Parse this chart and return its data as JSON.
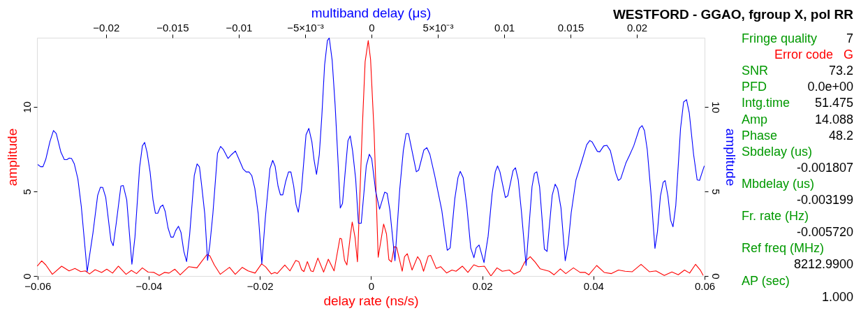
{
  "chart_data": {
    "type": "line",
    "title": "WESTFORD - GGAO, fgroup X, pol RR",
    "xlabel": "delay rate (ns/s)",
    "x2label": "multiband delay (μs)",
    "ylabel": "amplitude",
    "y2label": "amplitude",
    "xlim": [
      -0.0601,
      0.06
    ],
    "xticks": [
      -0.06,
      -0.04,
      -0.02,
      0,
      0.02,
      0.04,
      0.06
    ],
    "x2lim": [
      -0.0252,
      0.0251
    ],
    "x2ticks": [
      -0.02,
      -0.015,
      -0.01,
      {
        "value": -0.005,
        "label": "−5×10⁻³"
      },
      0,
      {
        "value": 0.005,
        "label": "5×10⁻³"
      },
      0.01,
      0.015,
      0.02
    ],
    "ylim": [
      0,
      14.09
    ],
    "yticks": [
      0,
      5,
      10
    ],
    "y2lim": [
      0,
      14.09
    ],
    "y2ticks": [
      0,
      5,
      10
    ],
    "grid": false,
    "marker": "none",
    "line_style": "solid",
    "series": [
      {
        "color": "#ff0000",
        "x": [
          -0.06006,
          -0.05926,
          -0.05851,
          -0.05734,
          -0.05567,
          -0.05433,
          -0.05328,
          -0.05223,
          -0.0514,
          -0.05065,
          -0.04965,
          -0.04847,
          -0.04755,
          -0.04651,
          -0.04546,
          -0.04408,
          -0.04312,
          -0.0422,
          -0.04115,
          -0.04011,
          -0.03906,
          -0.0381,
          -0.03718,
          -0.03634,
          -0.0353,
          -0.03434,
          -0.03279,
          -0.03133,
          -0.03049,
          -0.02952,
          -0.02902,
          -0.0282,
          -0.02714,
          -0.02547,
          -0.02443,
          -0.02317,
          -0.02212,
          -0.02087,
          -0.0197,
          -0.01898,
          -0.01794,
          -0.01731,
          -0.0169,
          -0.01552,
          -0.01459,
          -0.01355,
          -0.01301,
          -0.0125,
          -0.01208,
          -0.01146,
          -0.01083,
          -0.01041,
          -0.00957,
          -0.00853,
          -0.00769,
          -0.00665,
          -0.00561,
          -0.00531,
          -0.00477,
          -0.00435,
          -0.00373,
          -0.00339,
          -0.00289,
          -0.00245,
          -0.00158,
          -0.00107,
          -0.00051,
          -9e-05,
          0.00055,
          0.00128,
          0.00226,
          0.00277,
          0.0032,
          0.00366,
          0.00418,
          0.0046,
          0.0056,
          0.00602,
          0.00652,
          0.00738,
          0.00837,
          0.00887,
          0.00944,
          0.01029,
          0.01072,
          0.01173,
          0.01251,
          0.01358,
          0.01455,
          0.01528,
          0.01642,
          0.01742,
          0.01848,
          0.01934,
          0.0204,
          0.02156,
          0.02266,
          0.0236,
          0.02488,
          0.02573,
          0.0268,
          0.02765,
          0.02863,
          0.02949,
          0.03043,
          0.03205,
          0.0329,
          0.03405,
          0.03503,
          0.0364,
          0.0376,
          0.03853,
          0.03917,
          0.04059,
          0.04194,
          0.04324,
          0.04452,
          0.04571,
          0.04699,
          0.04857,
          0.05006,
          0.05126,
          0.05275,
          0.05412,
          0.05527,
          0.05639,
          0.05731,
          0.05838,
          0.05923,
          0.05975
        ],
        "values": [
          0.58,
          0.89,
          0.65,
          0.1,
          0.58,
          0.3,
          0.44,
          0.26,
          0.3,
          0.12,
          0.37,
          0.21,
          0.4,
          0.17,
          0.58,
          0.1,
          0.33,
          0.14,
          0.48,
          0.23,
          0.21,
          0.03,
          0.21,
          0.17,
          0.4,
          0.07,
          0.55,
          0.48,
          0.85,
          1.27,
          1.2,
          0.65,
          0.1,
          0.51,
          0.1,
          0.51,
          0.3,
          0.17,
          0.72,
          0.54,
          0.12,
          0.21,
          0.14,
          0.65,
          0.3,
          0.92,
          0.85,
          0.37,
          0.26,
          0.85,
          0.3,
          0.26,
          1.06,
          0.23,
          0.99,
          0.3,
          2.23,
          2.19,
          0.92,
          0.65,
          2.37,
          3.19,
          2.3,
          0.84,
          8.73,
          12.67,
          13.92,
          12.81,
          8.45,
          1.11,
          3.07,
          2.49,
          0.97,
          0.83,
          1.73,
          1.69,
          0.28,
          1.14,
          1.32,
          0.35,
          1.14,
          0.9,
          0.28,
          1.18,
          1.22,
          0.44,
          0.55,
          0.18,
          0.35,
          0.28,
          0.58,
          0.21,
          0.66,
          0.55,
          0.58,
          0.0,
          0.48,
          0.28,
          0.35,
          0.11,
          0.28,
          0.83,
          1.14,
          0.83,
          0.42,
          0.28,
          0.07,
          0.42,
          0.14,
          0.48,
          0.21,
          0.21,
          0.07,
          0.62,
          0.21,
          0.14,
          0.35,
          0.28,
          0.25,
          0.69,
          0.25,
          0.3,
          0.03,
          0.24,
          0.07,
          0.35,
          0.17,
          0.69,
          0.35,
          0.03
        ]
      },
      {
        "color": "#0000ff",
        "axis": "x2",
        "x": [
          -0.02514,
          -0.02493,
          -0.02475,
          -0.02454,
          -0.02423,
          -0.02396,
          -0.02375,
          -0.0234,
          -0.02314,
          -0.02295,
          -0.02277,
          -0.0226,
          -0.02239,
          -0.02212,
          -0.02186,
          -0.02142,
          -0.02098,
          -0.02063,
          -0.02042,
          -0.02025,
          -0.02002,
          -0.01963,
          -0.01946,
          -0.01923,
          -0.01888,
          -0.0187,
          -0.01844,
          -0.01805,
          -0.01782,
          -0.01747,
          -0.01726,
          -0.01709,
          -0.01691,
          -0.01668,
          -0.01646,
          -0.01628,
          -0.0161,
          -0.0159,
          -0.01572,
          -0.01554,
          -0.01533,
          -0.01511,
          -0.01493,
          -0.01475,
          -0.01454,
          -0.01435,
          -0.01414,
          -0.01393,
          -0.0137,
          -0.01335,
          -0.01314,
          -0.01296,
          -0.01279,
          -0.01256,
          -0.01235,
          -0.01218,
          -0.01195,
          -0.0116,
          -0.01137,
          -0.01116,
          -0.01081,
          -0.01054,
          -0.01025,
          -0.01002,
          -0.00967,
          -0.00944,
          -0.00923,
          -0.00902,
          -0.00879,
          -0.00853,
          -0.00826,
          -0.008,
          -0.00765,
          -0.00744,
          -0.00726,
          -0.00704,
          -0.00686,
          -0.00668,
          -0.00646,
          -0.00625,
          -0.00607,
          -0.00586,
          -0.00568,
          -0.00551,
          -0.00528,
          -0.00493,
          -0.00472,
          -0.00449,
          -0.00432,
          -0.00414,
          -0.00393,
          -0.00374,
          -0.00353,
          -0.00332,
          -0.00318,
          -0.00296,
          -0.00274,
          -0.00253,
          -0.00235,
          -0.00218,
          -0.00195,
          -0.00177,
          -0.0016,
          -0.00142,
          -0.00119,
          -0.00098,
          -0.00077,
          -0.00039,
          -0.00016,
          2e-05,
          0.00032,
          0.00061,
          0.001,
          0.00118,
          0.00139,
          0.00177,
          0.00213,
          0.0024,
          0.00261,
          0.00279,
          0.003,
          0.00338,
          0.00356,
          0.00395,
          0.00417,
          0.0044,
          0.00476,
          0.0053,
          0.00571,
          0.00593,
          0.00628,
          0.00652,
          0.00669,
          0.00691,
          0.00718,
          0.00748,
          0.00772,
          0.00789,
          0.00811,
          0.00848,
          0.00879,
          0.00909,
          0.00933,
          0.0095,
          0.00968,
          0.01009,
          0.01027,
          0.01067,
          0.01085,
          0.01106,
          0.0113,
          0.01165,
          0.0121,
          0.01228,
          0.01246,
          0.01267,
          0.01303,
          0.01323,
          0.01362,
          0.01384,
          0.01403,
          0.01428,
          0.0146,
          0.01482,
          0.01505,
          0.01541,
          0.01577,
          0.01622,
          0.01645,
          0.01663,
          0.01702,
          0.0172,
          0.0175,
          0.01774,
          0.018,
          0.0184,
          0.0186,
          0.01878,
          0.01917,
          0.01944,
          0.01976,
          0.02019,
          0.02039,
          0.02057,
          0.02078,
          0.02105,
          0.02136,
          0.02155,
          0.02177,
          0.02198,
          0.02213,
          0.02234,
          0.02254,
          0.02272,
          0.02293,
          0.02329,
          0.02352,
          0.02374,
          0.02395,
          0.02427,
          0.02454,
          0.02472,
          0.0249,
          0.02508
        ],
        "values": [
          6.59,
          6.46,
          6.46,
          6.9,
          7.94,
          8.6,
          8.42,
          7.32,
          6.88,
          6.88,
          6.97,
          6.95,
          6.63,
          5.74,
          4.09,
          0.26,
          2.57,
          4.77,
          5.25,
          5.24,
          4.64,
          2.09,
          1.79,
          3.12,
          5.32,
          5.35,
          4.5,
          0.69,
          2.3,
          6.42,
          7.69,
          7.9,
          7.32,
          6.15,
          4.5,
          3.71,
          3.71,
          4.09,
          4.2,
          3.81,
          2.85,
          2.3,
          2.3,
          2.68,
          2.94,
          2.57,
          1.47,
          0.85,
          2.43,
          5.94,
          6.63,
          6.45,
          5.32,
          3.67,
          0.92,
          1.82,
          3.67,
          7.25,
          7.66,
          7.48,
          6.95,
          7.18,
          7.39,
          6.97,
          6.33,
          6.15,
          6.15,
          5.94,
          5.19,
          3.67,
          0.72,
          3.4,
          6.35,
          6.84,
          6.49,
          5.32,
          4.8,
          4.8,
          5.6,
          6.15,
          6.15,
          5.32,
          4.22,
          3.77,
          5.05,
          8.35,
          8.73,
          7.94,
          6.84,
          6.01,
          7.18,
          9.45,
          12.48,
          13.92,
          14.08,
          12.75,
          10.14,
          6.97,
          4.02,
          4.29,
          6.42,
          8.0,
          8.28,
          7.39,
          5.74,
          3.12,
          3.12,
          6.51,
          7.2,
          6.93,
          4.99,
          3.95,
          4.96,
          4.89,
          3.88,
          0.9,
          5.12,
          7.41,
          8.42,
          8.42,
          7.62,
          6.16,
          6.26,
          7.45,
          7.59,
          7.2,
          5.96,
          3.88,
          1.52,
          1.66,
          4.57,
          5.82,
          6.19,
          5.82,
          4.16,
          1.66,
          1.08,
          1.66,
          1.83,
          0.79,
          2.35,
          4.85,
          6.16,
          6.51,
          6.16,
          4.64,
          4.74,
          6.23,
          6.4,
          5.68,
          3.81,
          0.62,
          5.29,
          6.07,
          6.16,
          5.26,
          1.59,
          1.45,
          4.78,
          5.43,
          5.15,
          4.02,
          0.9,
          1.87,
          3.74,
          5.68,
          6.58,
          7.76,
          8.01,
          7.92,
          7.37,
          7.34,
          7.69,
          7.73,
          7.41,
          6.09,
          5.65,
          5.75,
          6.68,
          7.13,
          7.69,
          8.73,
          8.89,
          8.59,
          7.48,
          4.99,
          1.63,
          2.63,
          4.71,
          5.54,
          5.64,
          4.71,
          3.3,
          2.91,
          4.16,
          8.73,
          10.29,
          10.43,
          9.63,
          7.2,
          5.68,
          5.65,
          6.09,
          6.51
        ]
      }
    ],
    "annotations": [
      "Fringe quality",
      "7",
      "Error code",
      "G",
      "SNR",
      "73.2",
      "PFD",
      "0.0e+00",
      "Intg.time",
      "51.475",
      "Amp",
      "14.088",
      "Phase",
      "48.2",
      "Sbdelay (us)",
      "-0.001807",
      "Mbdelay (us)",
      "-0.003199",
      "Fr. rate (Hz)",
      "-0.005720",
      "Ref freq (MHz)",
      "8212.9900",
      "AP (sec)",
      "1.000"
    ]
  }
}
